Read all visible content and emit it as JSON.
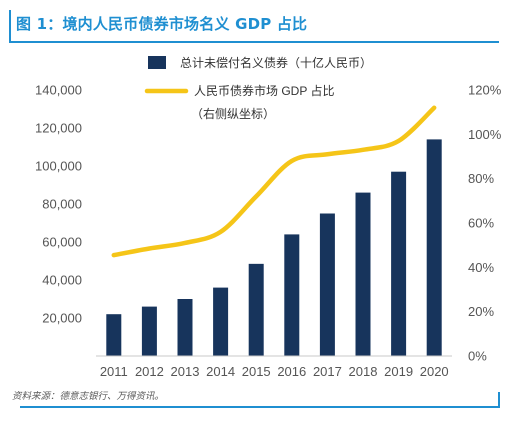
{
  "header": {
    "title": "图 1：境内人民币债券市场名义 GDP 占比"
  },
  "source": "资料来源：德意志银行、万得资讯。",
  "colors": {
    "bar": "#17345c",
    "line": "#f5c518",
    "accent": "#1f8fd1",
    "axis_text": "#555555"
  },
  "chart_data": {
    "type": "bar",
    "categories": [
      "2011",
      "2012",
      "2013",
      "2014",
      "2015",
      "2016",
      "2017",
      "2018",
      "2019",
      "2020"
    ],
    "series": [
      {
        "name": "总计未偿付名义债券（十亿人民币）",
        "type": "bar",
        "axis": "left",
        "values": [
          22000,
          26000,
          30000,
          36000,
          48500,
          64000,
          75000,
          86000,
          97000,
          114000
        ]
      },
      {
        "name": "人民币债券市场 GDP 占比",
        "type": "line",
        "axis": "right",
        "values": [
          0.455,
          0.485,
          0.51,
          0.56,
          0.72,
          0.88,
          0.91,
          0.93,
          0.97,
          1.12
        ]
      }
    ],
    "legend": [
      {
        "label": "总计未偿付名义债券（十亿人民币）",
        "marker": "bar"
      },
      {
        "label": "人民币债券市场 GDP 占比",
        "marker": "line"
      },
      {
        "label": "（右侧纵坐标）",
        "marker": "none"
      }
    ],
    "left_axis": {
      "ylim": [
        0,
        140000
      ],
      "ticks": [
        {
          "v": 20000,
          "label": "20,000"
        },
        {
          "v": 40000,
          "label": "40,000"
        },
        {
          "v": 60000,
          "label": "60,000"
        },
        {
          "v": 80000,
          "label": "80,000"
        },
        {
          "v": 100000,
          "label": "100,000"
        },
        {
          "v": 120000,
          "label": "120,000"
        },
        {
          "v": 140000,
          "label": "140,000"
        }
      ]
    },
    "right_axis": {
      "ylim": [
        0,
        1.2
      ],
      "ticks": [
        {
          "v": 0,
          "label": "0%"
        },
        {
          "v": 0.2,
          "label": "20%"
        },
        {
          "v": 0.4,
          "label": "40%"
        },
        {
          "v": 0.6,
          "label": "60%"
        },
        {
          "v": 0.8,
          "label": "80%"
        },
        {
          "v": 1.0,
          "label": "100%"
        },
        {
          "v": 1.2,
          "label": "120%"
        }
      ]
    },
    "legend_position": "top-left",
    "grid": false
  }
}
